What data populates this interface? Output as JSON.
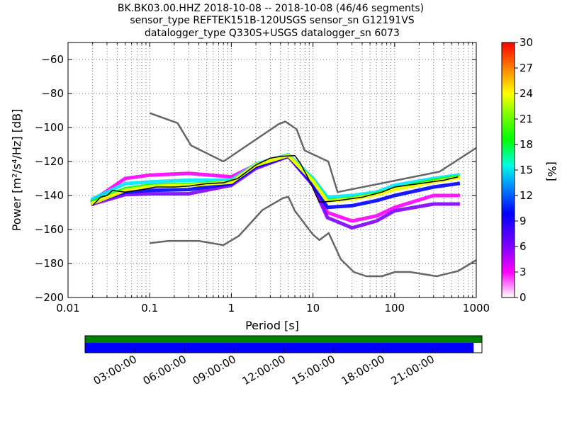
{
  "title_lines": [
    "BK.BK03.00.HHZ   2018-10-08 -- 2018-10-08  (46/46 segments)",
    "sensor_type REFTEK151B-120USGS sensor_sn G12191VS",
    "datalogger_type Q330S+USGS datalogger_sn 6073"
  ],
  "chart_data": {
    "type": "heatmap",
    "xlabel": "Period [s]",
    "ylabel": "Power [m²/s⁴/Hz] [dB]",
    "x_scale": "log",
    "xlim": [
      0.01,
      1000
    ],
    "ylim": [
      -200,
      -50
    ],
    "x_ticks": [
      {
        "v": 0.01,
        "label": "0.01"
      },
      {
        "v": 0.1,
        "label": "0.1"
      },
      {
        "v": 1,
        "label": "1"
      },
      {
        "v": 10,
        "label": "10"
      },
      {
        "v": 100,
        "label": "100"
      },
      {
        "v": 1000,
        "label": "1000"
      }
    ],
    "y_ticks": [
      {
        "v": -60,
        "label": "−60"
      },
      {
        "v": -80,
        "label": "−80"
      },
      {
        "v": -100,
        "label": "−100"
      },
      {
        "v": -120,
        "label": "−120"
      },
      {
        "v": -140,
        "label": "−140"
      },
      {
        "v": -160,
        "label": "−160"
      },
      {
        "v": -180,
        "label": "−180"
      },
      {
        "v": -200,
        "label": "−200"
      }
    ],
    "grid": true,
    "colorbar": {
      "label": "[%]",
      "range": [
        0,
        30
      ],
      "ticks": [
        {
          "v": 0,
          "label": "0"
        },
        {
          "v": 3,
          "label": "3"
        },
        {
          "v": 6,
          "label": "6"
        },
        {
          "v": 9,
          "label": "9"
        },
        {
          "v": 12,
          "label": "12"
        },
        {
          "v": 15,
          "label": "15"
        },
        {
          "v": 18,
          "label": "18"
        },
        {
          "v": 21,
          "label": "21"
        },
        {
          "v": 24,
          "label": "24"
        },
        {
          "v": 27,
          "label": "27"
        },
        {
          "v": 30,
          "label": "30"
        }
      ]
    },
    "noise_models": [
      {
        "points": [
          [
            0.1,
            -91.5
          ],
          [
            0.22,
            -97.4
          ],
          [
            0.32,
            -110.5
          ],
          [
            0.8,
            -120
          ],
          [
            3.8,
            -98
          ],
          [
            4.6,
            -96.5
          ],
          [
            6.3,
            -101
          ],
          [
            7.9,
            -113.5
          ],
          [
            15.4,
            -120
          ],
          [
            20,
            -138
          ],
          [
            354,
            -126
          ],
          [
            1000,
            -112
          ]
        ]
      },
      {
        "points": [
          [
            0.1,
            -168
          ],
          [
            0.17,
            -166.7
          ],
          [
            0.4,
            -166.7
          ],
          [
            0.8,
            -169.2
          ],
          [
            1.24,
            -163.7
          ],
          [
            2.4,
            -148.6
          ],
          [
            4.3,
            -141.5
          ],
          [
            5,
            -140.8
          ],
          [
            6,
            -149
          ],
          [
            10,
            -163
          ],
          [
            12,
            -166.2
          ],
          [
            15.6,
            -162.1
          ],
          [
            21.9,
            -177.5
          ],
          [
            31.6,
            -185
          ],
          [
            45,
            -187.5
          ],
          [
            70,
            -187.5
          ],
          [
            101,
            -185
          ],
          [
            154,
            -185
          ],
          [
            328,
            -187.5
          ],
          [
            600,
            -184.4
          ],
          [
            1000,
            -178
          ]
        ]
      }
    ],
    "mode_curve": {
      "points": [
        [
          0.02,
          -146
        ],
        [
          0.025,
          -141
        ],
        [
          0.03,
          -140
        ],
        [
          0.035,
          -137
        ],
        [
          0.05,
          -138
        ],
        [
          0.08,
          -136.5
        ],
        [
          0.12,
          -135
        ],
        [
          0.2,
          -135
        ],
        [
          0.3,
          -134.5
        ],
        [
          0.5,
          -133
        ],
        [
          0.8,
          -132.5
        ],
        [
          1.2,
          -130
        ],
        [
          2,
          -122
        ],
        [
          3,
          -118
        ],
        [
          4,
          -117
        ],
        [
          6,
          -116.5
        ],
        [
          7,
          -121
        ],
        [
          9,
          -131
        ],
        [
          12,
          -144
        ],
        [
          20,
          -143
        ],
        [
          40,
          -141
        ],
        [
          70,
          -138
        ],
        [
          100,
          -135
        ],
        [
          200,
          -133
        ],
        [
          400,
          -131
        ],
        [
          600,
          -129
        ]
      ]
    },
    "percentile_bands": [
      {
        "color": "#ff00ff",
        "points": [
          [
            0.02,
            -143
          ],
          [
            0.05,
            -130
          ],
          [
            0.1,
            -128
          ],
          [
            0.3,
            -127
          ],
          [
            1,
            -129
          ],
          [
            2,
            -122
          ],
          [
            5,
            -116
          ],
          [
            10,
            -133
          ],
          [
            15,
            -150
          ],
          [
            30,
            -155
          ],
          [
            60,
            -152
          ],
          [
            100,
            -147
          ],
          [
            300,
            -140
          ],
          [
            600,
            -140
          ]
        ]
      },
      {
        "color": "#8000ff",
        "points": [
          [
            0.02,
            -145
          ],
          [
            0.05,
            -139.5
          ],
          [
            0.1,
            -139
          ],
          [
            0.3,
            -139
          ],
          [
            1,
            -134
          ],
          [
            2,
            -124
          ],
          [
            5,
            -117
          ],
          [
            10,
            -134
          ],
          [
            15,
            -153
          ],
          [
            30,
            -159
          ],
          [
            60,
            -155
          ],
          [
            100,
            -149
          ],
          [
            300,
            -145
          ],
          [
            600,
            -145
          ]
        ]
      },
      {
        "color": "#0000ff",
        "points": [
          [
            0.02,
            -144
          ],
          [
            0.05,
            -138
          ],
          [
            0.1,
            -137
          ],
          [
            0.3,
            -136.5
          ],
          [
            1,
            -133
          ],
          [
            2,
            -123
          ],
          [
            5,
            -116.8
          ],
          [
            10,
            -133
          ],
          [
            15,
            -147
          ],
          [
            30,
            -146
          ],
          [
            60,
            -143
          ],
          [
            100,
            -140
          ],
          [
            300,
            -135
          ],
          [
            600,
            -133
          ]
        ]
      },
      {
        "color": "#00e5ff",
        "points": [
          [
            0.02,
            -142
          ],
          [
            0.05,
            -133
          ],
          [
            0.1,
            -132
          ],
          [
            0.3,
            -131
          ],
          [
            1,
            -131
          ],
          [
            2,
            -121.5
          ],
          [
            5,
            -116
          ],
          [
            10,
            -130
          ],
          [
            15,
            -141
          ],
          [
            30,
            -140
          ],
          [
            60,
            -138
          ],
          [
            100,
            -134
          ],
          [
            300,
            -130
          ],
          [
            600,
            -128
          ]
        ]
      },
      {
        "color": "#00ff00",
        "points": [
          [
            0.02,
            -143.5
          ],
          [
            0.05,
            -136
          ],
          [
            0.1,
            -134
          ],
          [
            0.3,
            -133.5
          ],
          [
            1,
            -132
          ],
          [
            2,
            -122
          ],
          [
            5,
            -116.3
          ],
          [
            10,
            -131
          ],
          [
            15,
            -143
          ],
          [
            30,
            -141.5
          ],
          [
            60,
            -139
          ],
          [
            100,
            -136
          ],
          [
            300,
            -131
          ],
          [
            600,
            -129
          ]
        ]
      },
      {
        "color": "#ffff00",
        "points": [
          [
            0.02,
            -144.5
          ],
          [
            0.05,
            -137
          ],
          [
            0.1,
            -134.7
          ],
          [
            0.3,
            -134
          ],
          [
            1,
            -132.2
          ],
          [
            2,
            -122
          ],
          [
            5,
            -116.4
          ],
          [
            10,
            -131.5
          ],
          [
            15,
            -143.5
          ],
          [
            30,
            -142
          ],
          [
            60,
            -139.5
          ],
          [
            100,
            -136.5
          ],
          [
            300,
            -132
          ],
          [
            600,
            -129.5
          ]
        ]
      }
    ]
  },
  "timeline": {
    "time_labels": [
      "03:00:00",
      "06:00:00",
      "09:00:00",
      "12:00:00",
      "15:00:00",
      "18:00:00",
      "21:00:00"
    ],
    "label_hours": [
      3,
      6,
      9,
      12,
      15,
      18,
      21
    ],
    "range_hours": [
      0,
      24
    ],
    "upper_bar": {
      "color": "#008000",
      "coverage": [
        0,
        24
      ]
    },
    "lower_bar": {
      "color": "#0000ff",
      "coverage": [
        0,
        23.5
      ]
    }
  }
}
